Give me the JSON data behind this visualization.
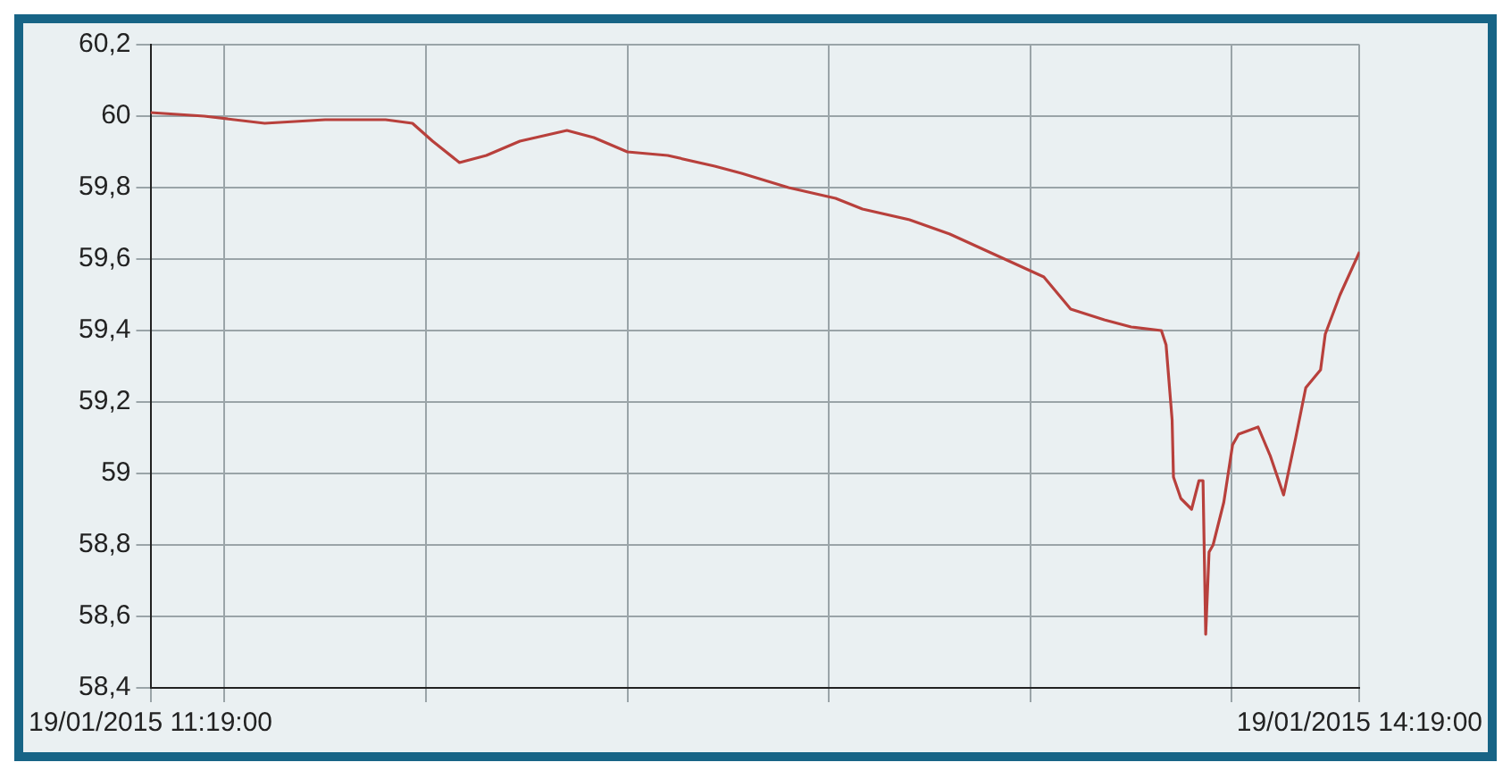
{
  "chart_data": {
    "type": "line",
    "x": [
      "2015-01-19T11:19:00",
      "2015-01-19T11:27:00",
      "2015-01-19T11:36:00",
      "2015-01-19T11:45:00",
      "2015-01-19T11:54:00",
      "2015-01-19T11:58:00",
      "2015-01-19T12:01:00",
      "2015-01-19T12:05:00",
      "2015-01-19T12:09:00",
      "2015-01-19T12:14:00",
      "2015-01-19T12:21:00",
      "2015-01-19T12:25:00",
      "2015-01-19T12:30:00",
      "2015-01-19T12:36:00",
      "2015-01-19T12:43:00",
      "2015-01-19T12:47:00",
      "2015-01-19T12:54:00",
      "2015-01-19T13:01:00",
      "2015-01-19T13:05:00",
      "2015-01-19T13:12:00",
      "2015-01-19T13:18:00",
      "2015-01-19T13:25:00",
      "2015-01-19T13:32:00",
      "2015-01-19T13:36:00",
      "2015-01-19T13:41:00",
      "2015-01-19T13:45:00",
      "2015-01-19T13:49:30",
      "2015-01-19T13:50:12",
      "2015-01-19T13:51:06",
      "2015-01-19T13:51:18",
      "2015-01-19T13:52:24",
      "2015-01-19T13:54:00",
      "2015-01-19T13:55:06",
      "2015-01-19T13:55:42",
      "2015-01-19T13:56:06",
      "2015-01-19T13:56:36",
      "2015-01-19T13:57:12",
      "2015-01-19T13:58:48",
      "2015-01-19T14:00:06",
      "2015-01-19T14:01:00",
      "2015-01-19T14:03:54",
      "2015-01-19T14:05:42",
      "2015-01-19T14:07:42",
      "2015-01-19T14:09:30",
      "2015-01-19T14:11:00",
      "2015-01-19T14:13:12",
      "2015-01-19T14:13:54",
      "2015-01-19T14:16:06",
      "2015-01-19T14:19:00"
    ],
    "series": [
      {
        "color": "#b8403c",
        "values": [
          60.01,
          60.0,
          59.98,
          59.99,
          59.99,
          59.98,
          59.93,
          59.87,
          59.89,
          59.93,
          59.96,
          59.94,
          59.9,
          59.89,
          59.86,
          59.84,
          59.8,
          59.77,
          59.74,
          59.71,
          59.67,
          59.61,
          59.55,
          59.46,
          59.43,
          59.41,
          59.4,
          59.36,
          59.15,
          58.99,
          58.93,
          58.9,
          58.98,
          58.98,
          58.55,
          58.78,
          58.8,
          58.92,
          59.08,
          59.11,
          59.13,
          59.05,
          58.94,
          59.1,
          59.24,
          59.29,
          59.39,
          59.5,
          59.62
        ]
      }
    ],
    "xlim": [
      "2015-01-19T11:19:00",
      "2015-01-19T14:19:00"
    ],
    "xticks": [
      {
        "value": "2015-01-19T11:19:00",
        "label": "19/01/2015 11:19:00"
      },
      {
        "value": "2015-01-19T11:30:00",
        "label": null
      },
      {
        "value": "2015-01-19T12:00:00",
        "label": null
      },
      {
        "value": "2015-01-19T12:30:00",
        "label": null
      },
      {
        "value": "2015-01-19T13:00:00",
        "label": null
      },
      {
        "value": "2015-01-19T13:30:00",
        "label": null
      },
      {
        "value": "2015-01-19T14:00:00",
        "label": null
      },
      {
        "value": "2015-01-19T14:19:00",
        "label": "19/01/2015 14:19:00"
      }
    ],
    "ylim": [
      58.4,
      60.2
    ],
    "yticks": [
      {
        "value": 58.4,
        "label": "58,4"
      },
      {
        "value": 58.6,
        "label": "58,6"
      },
      {
        "value": 58.8,
        "label": "58,8"
      },
      59,
      {
        "value": 59.2,
        "label": "59,2"
      },
      {
        "value": 59.4,
        "label": "59,4"
      },
      {
        "value": 59.6,
        "label": "59,6"
      },
      {
        "value": 59.8,
        "label": "59,8"
      },
      60,
      {
        "value": 60.2,
        "label": "60,2"
      }
    ],
    "grid": true,
    "legend": false,
    "marker": "none",
    "line_style": "solid"
  }
}
